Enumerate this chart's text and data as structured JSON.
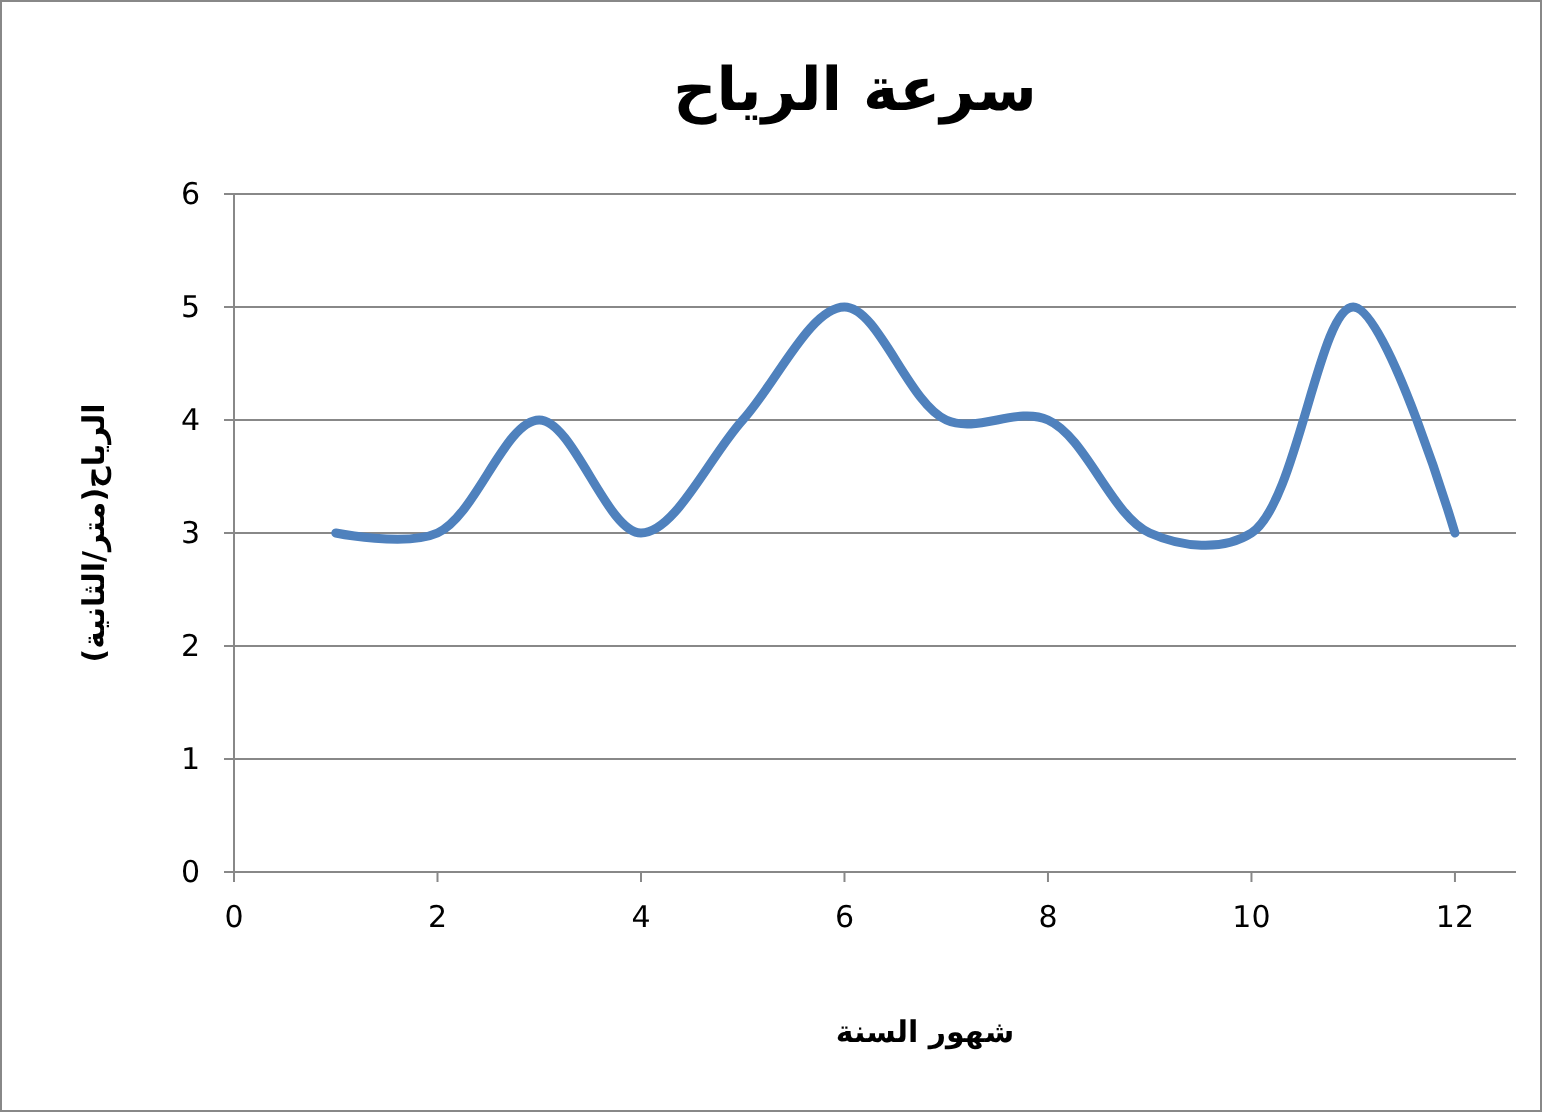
{
  "chart_data": {
    "type": "line",
    "title": "سرعة الرياح",
    "xlabel": "شهور السنة",
    "ylabel": "الرياح(متر/الثانية)",
    "x": [
      1,
      2,
      3,
      4,
      5,
      6,
      7,
      8,
      9,
      10,
      11,
      12
    ],
    "series": [
      {
        "color": "#4f81bd",
        "values": [
          3,
          3,
          4,
          3,
          4,
          5,
          4,
          4,
          3,
          3,
          5,
          3
        ]
      }
    ],
    "xlim": [
      0,
      12.6
    ],
    "xticks": [
      0,
      2,
      4,
      6,
      8,
      10,
      12
    ],
    "ylim": [
      0,
      6
    ],
    "yticks": [
      0,
      1,
      2,
      3,
      4,
      5,
      6
    ],
    "grid": "y",
    "marker": "none",
    "line_style": "solid"
  }
}
